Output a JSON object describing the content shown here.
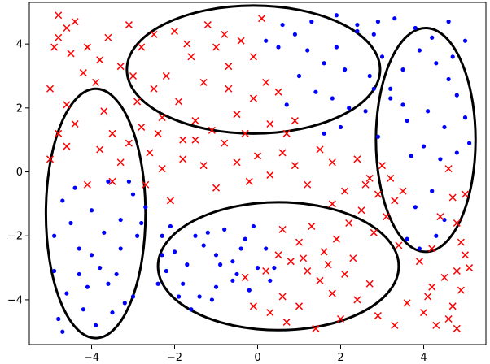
{
  "chart_data": {
    "type": "scatter",
    "title": "",
    "xlabel": "",
    "ylabel": "",
    "xlim": [
      -5.5,
      5.5
    ],
    "ylim": [
      -5.4,
      5.3
    ],
    "xticks": [
      -4,
      -2,
      0,
      2,
      4
    ],
    "yticks": [
      4,
      2,
      0,
      -2,
      -4
    ],
    "grid": false,
    "legend": "none",
    "colors": {
      "class_a": "#0000ff",
      "class_b": "#ff0000",
      "ellipse": "#000000"
    },
    "series": [
      {
        "marker": "dot",
        "color": "#0000ff",
        "points": [
          [
            0.6,
            4.6
          ],
          [
            0.9,
            4.3
          ],
          [
            1.2,
            3.8
          ],
          [
            0.5,
            3.9
          ],
          [
            0.2,
            4.1
          ],
          [
            1.6,
            3.4
          ],
          [
            1.9,
            3.9
          ],
          [
            2.1,
            3.2
          ],
          [
            2.4,
            4.4
          ],
          [
            2.8,
            4.3
          ],
          [
            3.0,
            3.6
          ],
          [
            3.5,
            3.2
          ],
          [
            1.4,
            2.5
          ],
          [
            1.8,
            2.3
          ],
          [
            2.2,
            2.0
          ],
          [
            2.6,
            1.9
          ],
          [
            2.0,
            1.4
          ],
          [
            1.6,
            1.2
          ],
          [
            2.9,
            1.1
          ],
          [
            2.4,
            4.6
          ],
          [
            2.9,
            4.7
          ],
          [
            3.3,
            4.8
          ],
          [
            1.9,
            4.9
          ],
          [
            1.3,
            4.7
          ],
          [
            0.7,
            2.1
          ],
          [
            2.8,
            2.6
          ],
          [
            3.2,
            2.3
          ],
          [
            2.7,
            3.0
          ],
          [
            1.0,
            3.0
          ],
          [
            3.9,
            3.8
          ],
          [
            4.3,
            3.4
          ],
          [
            4.6,
            2.9
          ],
          [
            4.8,
            2.4
          ],
          [
            5.0,
            1.7
          ],
          [
            4.5,
            1.4
          ],
          [
            4.1,
            1.9
          ],
          [
            3.6,
            1.6
          ],
          [
            4.0,
            0.8
          ],
          [
            4.4,
            0.4
          ],
          [
            4.8,
            0.6
          ],
          [
            5.1,
            0.9
          ],
          [
            3.5,
            2.1
          ],
          [
            4.2,
            4.2
          ],
          [
            3.8,
            4.5
          ],
          [
            4.6,
            4.7
          ],
          [
            5.0,
            4.1
          ],
          [
            3.7,
            0.5
          ],
          [
            4.2,
            -0.6
          ],
          [
            3.8,
            -1.1
          ],
          [
            3.6,
            -2.1
          ],
          [
            3.9,
            -2.4
          ],
          [
            4.3,
            -2.0
          ],
          [
            4.5,
            -1.5
          ],
          [
            3.2,
            2.6
          ],
          [
            4.7,
            3.6
          ],
          [
            -4.9,
            -2.0
          ],
          [
            -4.7,
            -0.9
          ],
          [
            -4.5,
            -1.6
          ],
          [
            -4.3,
            -2.4
          ],
          [
            -4.0,
            -1.2
          ],
          [
            -3.8,
            -3.0
          ],
          [
            -3.6,
            -3.5
          ],
          [
            -3.3,
            -2.4
          ],
          [
            -3.0,
            -0.7
          ],
          [
            -2.7,
            -1.1
          ],
          [
            -2.9,
            -2.0
          ],
          [
            -3.2,
            -4.1
          ],
          [
            -3.5,
            -4.4
          ],
          [
            -3.9,
            -4.8
          ],
          [
            -4.2,
            -4.3
          ],
          [
            -4.6,
            -3.8
          ],
          [
            -4.8,
            -4.6
          ],
          [
            -4.9,
            -3.1
          ],
          [
            -3.6,
            -0.3
          ],
          [
            -3.1,
            -0.3
          ],
          [
            -4.4,
            -0.5
          ],
          [
            -4.0,
            -2.6
          ],
          [
            -3.4,
            -3.2
          ],
          [
            -2.8,
            -1.6
          ],
          [
            -3.7,
            -1.9
          ],
          [
            -4.7,
            -5.0
          ],
          [
            -4.1,
            -3.6
          ],
          [
            -3.0,
            -3.9
          ],
          [
            -3.3,
            -1.5
          ],
          [
            -4.3,
            -3.2
          ],
          [
            -2.3,
            -2.6
          ],
          [
            -2.0,
            -2.5
          ],
          [
            -1.7,
            -2.9
          ],
          [
            -1.3,
            -2.3
          ],
          [
            -1.0,
            -2.6
          ],
          [
            -0.6,
            -2.8
          ],
          [
            -0.3,
            -2.1
          ],
          [
            -0.1,
            -1.7
          ],
          [
            0.2,
            -2.4
          ],
          [
            0.4,
            -3.0
          ],
          [
            -2.2,
            -3.1
          ],
          [
            -1.8,
            -3.5
          ],
          [
            -1.4,
            -3.9
          ],
          [
            -1.0,
            -3.6
          ],
          [
            -0.6,
            -3.4
          ],
          [
            -0.2,
            -3.7
          ],
          [
            0.3,
            -3.4
          ],
          [
            -1.5,
            -2.0
          ],
          [
            -1.2,
            -1.9
          ],
          [
            -0.8,
            -1.8
          ],
          [
            -0.5,
            -3.2
          ],
          [
            -1.9,
            -3.9
          ],
          [
            -2.3,
            -2.0
          ],
          [
            -0.9,
            -2.9
          ],
          [
            0.0,
            -3.0
          ],
          [
            -1.6,
            -4.3
          ],
          [
            -1.1,
            -4.0
          ],
          [
            -2.4,
            -3.5
          ],
          [
            -0.4,
            -2.4
          ],
          [
            -2.1,
            -1.7
          ]
        ]
      },
      {
        "marker": "x",
        "color": "#ff0000",
        "points": [
          [
            -4.8,
            4.9
          ],
          [
            -4.6,
            4.5
          ],
          [
            -4.4,
            4.7
          ],
          [
            -4.9,
            3.9
          ],
          [
            -4.5,
            3.7
          ],
          [
            -4.1,
            3.9
          ],
          [
            -3.8,
            3.5
          ],
          [
            -3.6,
            4.2
          ],
          [
            -3.3,
            3.3
          ],
          [
            -3.1,
            4.6
          ],
          [
            -2.8,
            3.9
          ],
          [
            -2.5,
            4.3
          ],
          [
            -4.8,
            4.2
          ],
          [
            -4.2,
            3.1
          ],
          [
            -3.9,
            2.8
          ],
          [
            -4.6,
            2.1
          ],
          [
            -5.0,
            2.6
          ],
          [
            -4.4,
            1.5
          ],
          [
            -4.8,
            1.2
          ],
          [
            -5.0,
            0.4
          ],
          [
            -4.6,
            0.8
          ],
          [
            -3.7,
            1.9
          ],
          [
            -3.5,
            1.2
          ],
          [
            -3.1,
            0.9
          ],
          [
            -2.8,
            1.4
          ],
          [
            -2.6,
            0.6
          ],
          [
            -3.3,
            0.3
          ],
          [
            -3.8,
            0.7
          ],
          [
            -4.1,
            -0.4
          ],
          [
            -3.5,
            -0.3
          ],
          [
            -2.7,
            -0.4
          ],
          [
            -2.3,
            0.1
          ],
          [
            -2.1,
            -0.9
          ],
          [
            -1.8,
            0.4
          ],
          [
            -1.5,
            1.0
          ],
          [
            -1.3,
            0.2
          ],
          [
            -1.0,
            -0.5
          ],
          [
            -0.8,
            0.9
          ],
          [
            -0.5,
            0.3
          ],
          [
            -0.2,
            -0.3
          ],
          [
            0.0,
            0.5
          ],
          [
            0.3,
            -0.1
          ],
          [
            0.6,
            0.6
          ],
          [
            0.9,
            0.2
          ],
          [
            1.2,
            -0.4
          ],
          [
            1.5,
            0.7
          ],
          [
            1.8,
            0.3
          ],
          [
            2.1,
            -0.6
          ],
          [
            2.4,
            0.4
          ],
          [
            2.7,
            -0.2
          ],
          [
            -2.5,
            2.6
          ],
          [
            -2.2,
            3.0
          ],
          [
            -1.9,
            2.2
          ],
          [
            -1.6,
            3.6
          ],
          [
            -1.3,
            2.8
          ],
          [
            -1.0,
            3.9
          ],
          [
            -0.7,
            3.3
          ],
          [
            -0.4,
            4.1
          ],
          [
            -0.1,
            3.6
          ],
          [
            0.2,
            2.8
          ],
          [
            -2.0,
            4.4
          ],
          [
            -1.7,
            4.0
          ],
          [
            -1.2,
            4.6
          ],
          [
            -0.8,
            4.3
          ],
          [
            0.1,
            4.8
          ],
          [
            -2.9,
            2.2
          ],
          [
            -3.0,
            3.0
          ],
          [
            -2.3,
            1.7
          ],
          [
            -1.5,
            1.6
          ],
          [
            -0.5,
            1.8
          ],
          [
            0.3,
            1.5
          ],
          [
            0.7,
            1.2
          ],
          [
            -0.1,
            2.3
          ],
          [
            0.5,
            2.5
          ],
          [
            -0.7,
            2.6
          ],
          [
            -1.1,
            1.3
          ],
          [
            -2.4,
            1.2
          ],
          [
            -0.3,
            1.2
          ],
          [
            0.9,
            1.6
          ],
          [
            -1.8,
            1.0
          ],
          [
            1.8,
            -1.0
          ],
          [
            2.2,
            -1.6
          ],
          [
            2.5,
            -1.2
          ],
          [
            2.8,
            -1.9
          ],
          [
            3.1,
            -1.4
          ],
          [
            3.4,
            -2.3
          ],
          [
            2.9,
            -0.7
          ],
          [
            3.3,
            -0.9
          ],
          [
            2.6,
            -0.4
          ],
          [
            3.0,
            0.2
          ],
          [
            3.2,
            -0.2
          ],
          [
            3.5,
            -0.6
          ],
          [
            0.6,
            -1.8
          ],
          [
            1.0,
            -2.2
          ],
          [
            1.3,
            -1.7
          ],
          [
            1.6,
            -2.5
          ],
          [
            1.9,
            -2.1
          ],
          [
            0.8,
            -2.8
          ],
          [
            1.2,
            -3.1
          ],
          [
            1.5,
            -3.4
          ],
          [
            1.8,
            -3.8
          ],
          [
            2.1,
            -3.2
          ],
          [
            2.4,
            -4.0
          ],
          [
            2.7,
            -3.5
          ],
          [
            1.0,
            -4.2
          ],
          [
            0.6,
            -3.9
          ],
          [
            0.3,
            -4.4
          ],
          [
            -0.1,
            -4.2
          ],
          [
            2.0,
            -4.6
          ],
          [
            2.9,
            -4.5
          ],
          [
            3.3,
            -4.8
          ],
          [
            3.6,
            -4.1
          ],
          [
            0.7,
            -4.7
          ],
          [
            1.4,
            -4.9
          ],
          [
            -0.3,
            -3.3
          ],
          [
            0.2,
            -3.1
          ],
          [
            0.5,
            -2.6
          ],
          [
            1.1,
            -2.7
          ],
          [
            1.7,
            -2.9
          ],
          [
            2.3,
            -2.7
          ],
          [
            4.0,
            -4.4
          ],
          [
            4.3,
            -4.8
          ],
          [
            4.7,
            -4.2
          ],
          [
            4.9,
            -3.7
          ],
          [
            5.0,
            -2.6
          ],
          [
            4.8,
            -3.1
          ],
          [
            4.1,
            -3.9
          ],
          [
            4.4,
            -1.4
          ],
          [
            4.7,
            -0.8
          ],
          [
            5.0,
            -0.7
          ],
          [
            4.6,
            0.1
          ],
          [
            4.8,
            -1.6
          ],
          [
            4.2,
            -2.4
          ],
          [
            3.9,
            -2.8
          ],
          [
            4.5,
            -3.3
          ],
          [
            4.8,
            -4.9
          ],
          [
            5.1,
            -3.0
          ],
          [
            4.9,
            -2.2
          ],
          [
            4.2,
            -3.6
          ],
          [
            4.6,
            -4.6
          ]
        ]
      }
    ],
    "ellipses": [
      {
        "cx": -0.1,
        "cy": 3.2,
        "rx": 3.05,
        "ry": 2.0,
        "angle": 0
      },
      {
        "cx": -3.9,
        "cy": -1.3,
        "rx": 1.2,
        "ry": 3.9,
        "angle": 0
      },
      {
        "cx": 0.5,
        "cy": -2.95,
        "rx": 2.9,
        "ry": 2.0,
        "angle": 0
      },
      {
        "cx": 4.05,
        "cy": 1.0,
        "rx": 1.2,
        "ry": 3.5,
        "angle": 0
      }
    ]
  }
}
